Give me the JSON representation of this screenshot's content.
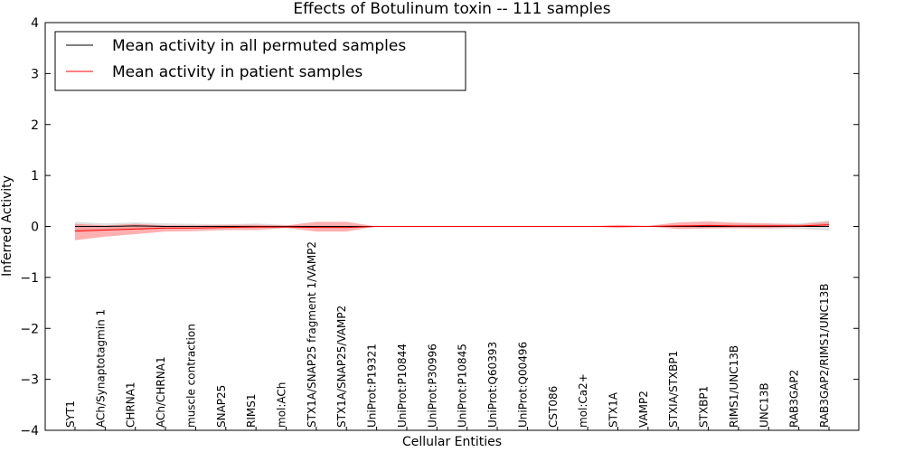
{
  "chart_data": {
    "type": "line",
    "title": "Effects of Botulinum toxin -- 111 samples",
    "xlabel": "Cellular Entities",
    "ylabel": "Inferred Activity",
    "ylim": [
      -4,
      4
    ],
    "yticks": [
      -4,
      -3,
      -2,
      -1,
      0,
      1,
      2,
      3,
      4
    ],
    "ytick_labels": [
      "−4",
      "−3",
      "−2",
      "−1",
      "0",
      "1",
      "2",
      "3",
      "4"
    ],
    "grid": false,
    "legend_position": "top-left",
    "categories": [
      "SYT1",
      "ACh/Synaptotagmin 1",
      "CHRNA1",
      "ACh/CHRNA1",
      "muscle contraction",
      "SNAP25",
      "RIMS1",
      "mol:ACh",
      "STX1A/SNAP25 fragment 1/VAMP2",
      "STX1A/SNAP25/VAMP2",
      "UniProt:P19321",
      "UniProt:P10844",
      "UniProt:P30996",
      "UniProt:P10845",
      "UniProt:Q60393",
      "UniProt:Q00496",
      "CST086",
      "mol:Ca2+",
      "STX1A",
      "VAMP2",
      "STXIA/STXBP1",
      "STXBP1",
      "RIMS1/UNC13B",
      "UNC13B",
      "RAB3GAP2",
      "RAB3GAP2/RIMS1/UNC13B"
    ],
    "series": [
      {
        "name": "Mean activity in all permuted samples",
        "color": "#000000",
        "band_color": "#bbbbbb",
        "values": [
          0.0,
          0.0,
          0.01,
          0.0,
          0.0,
          0.0,
          0.0,
          0.0,
          0.0,
          0.0,
          0.0,
          0.0,
          0.0,
          0.0,
          0.0,
          0.0,
          0.0,
          0.0,
          0.0,
          0.0,
          0.0,
          0.0,
          0.0,
          0.0,
          0.0,
          0.0
        ],
        "lower": [
          -0.09,
          -0.06,
          -0.06,
          -0.05,
          -0.04,
          -0.03,
          -0.03,
          -0.03,
          -0.01,
          -0.01,
          0.0,
          0.0,
          0.0,
          0.0,
          0.0,
          0.0,
          0.0,
          0.0,
          -0.01,
          -0.01,
          -0.02,
          -0.03,
          -0.04,
          -0.05,
          -0.05,
          -0.08
        ],
        "upper": [
          0.09,
          0.06,
          0.08,
          0.06,
          0.05,
          0.04,
          0.06,
          0.03,
          0.01,
          0.01,
          0.0,
          0.0,
          0.0,
          0.0,
          0.0,
          0.0,
          0.0,
          0.0,
          0.01,
          0.01,
          0.03,
          0.04,
          0.05,
          0.05,
          0.06,
          0.12
        ]
      },
      {
        "name": "Mean activity in patient samples",
        "color": "#ff0000",
        "band_color": "#ff7070",
        "values": [
          -0.09,
          -0.07,
          -0.05,
          -0.03,
          -0.03,
          -0.02,
          -0.01,
          -0.01,
          -0.02,
          -0.02,
          0.0,
          0.0,
          0.0,
          0.0,
          0.0,
          0.0,
          0.0,
          0.0,
          0.0,
          0.0,
          0.01,
          0.02,
          0.01,
          0.01,
          0.01,
          0.03
        ],
        "lower": [
          -0.27,
          -0.2,
          -0.15,
          -0.1,
          -0.09,
          -0.07,
          -0.07,
          -0.03,
          -0.1,
          -0.1,
          0.0,
          0.0,
          0.0,
          0.0,
          0.0,
          0.0,
          0.0,
          0.0,
          -0.03,
          0.0,
          -0.05,
          -0.04,
          -0.03,
          -0.03,
          -0.01,
          0.0
        ],
        "upper": [
          0.05,
          0.02,
          0.05,
          0.02,
          0.02,
          0.03,
          0.03,
          0.02,
          0.09,
          0.09,
          0.0,
          0.0,
          0.0,
          0.0,
          0.0,
          0.0,
          0.0,
          0.0,
          0.03,
          0.01,
          0.08,
          0.1,
          0.07,
          0.06,
          0.04,
          0.09
        ]
      }
    ]
  }
}
